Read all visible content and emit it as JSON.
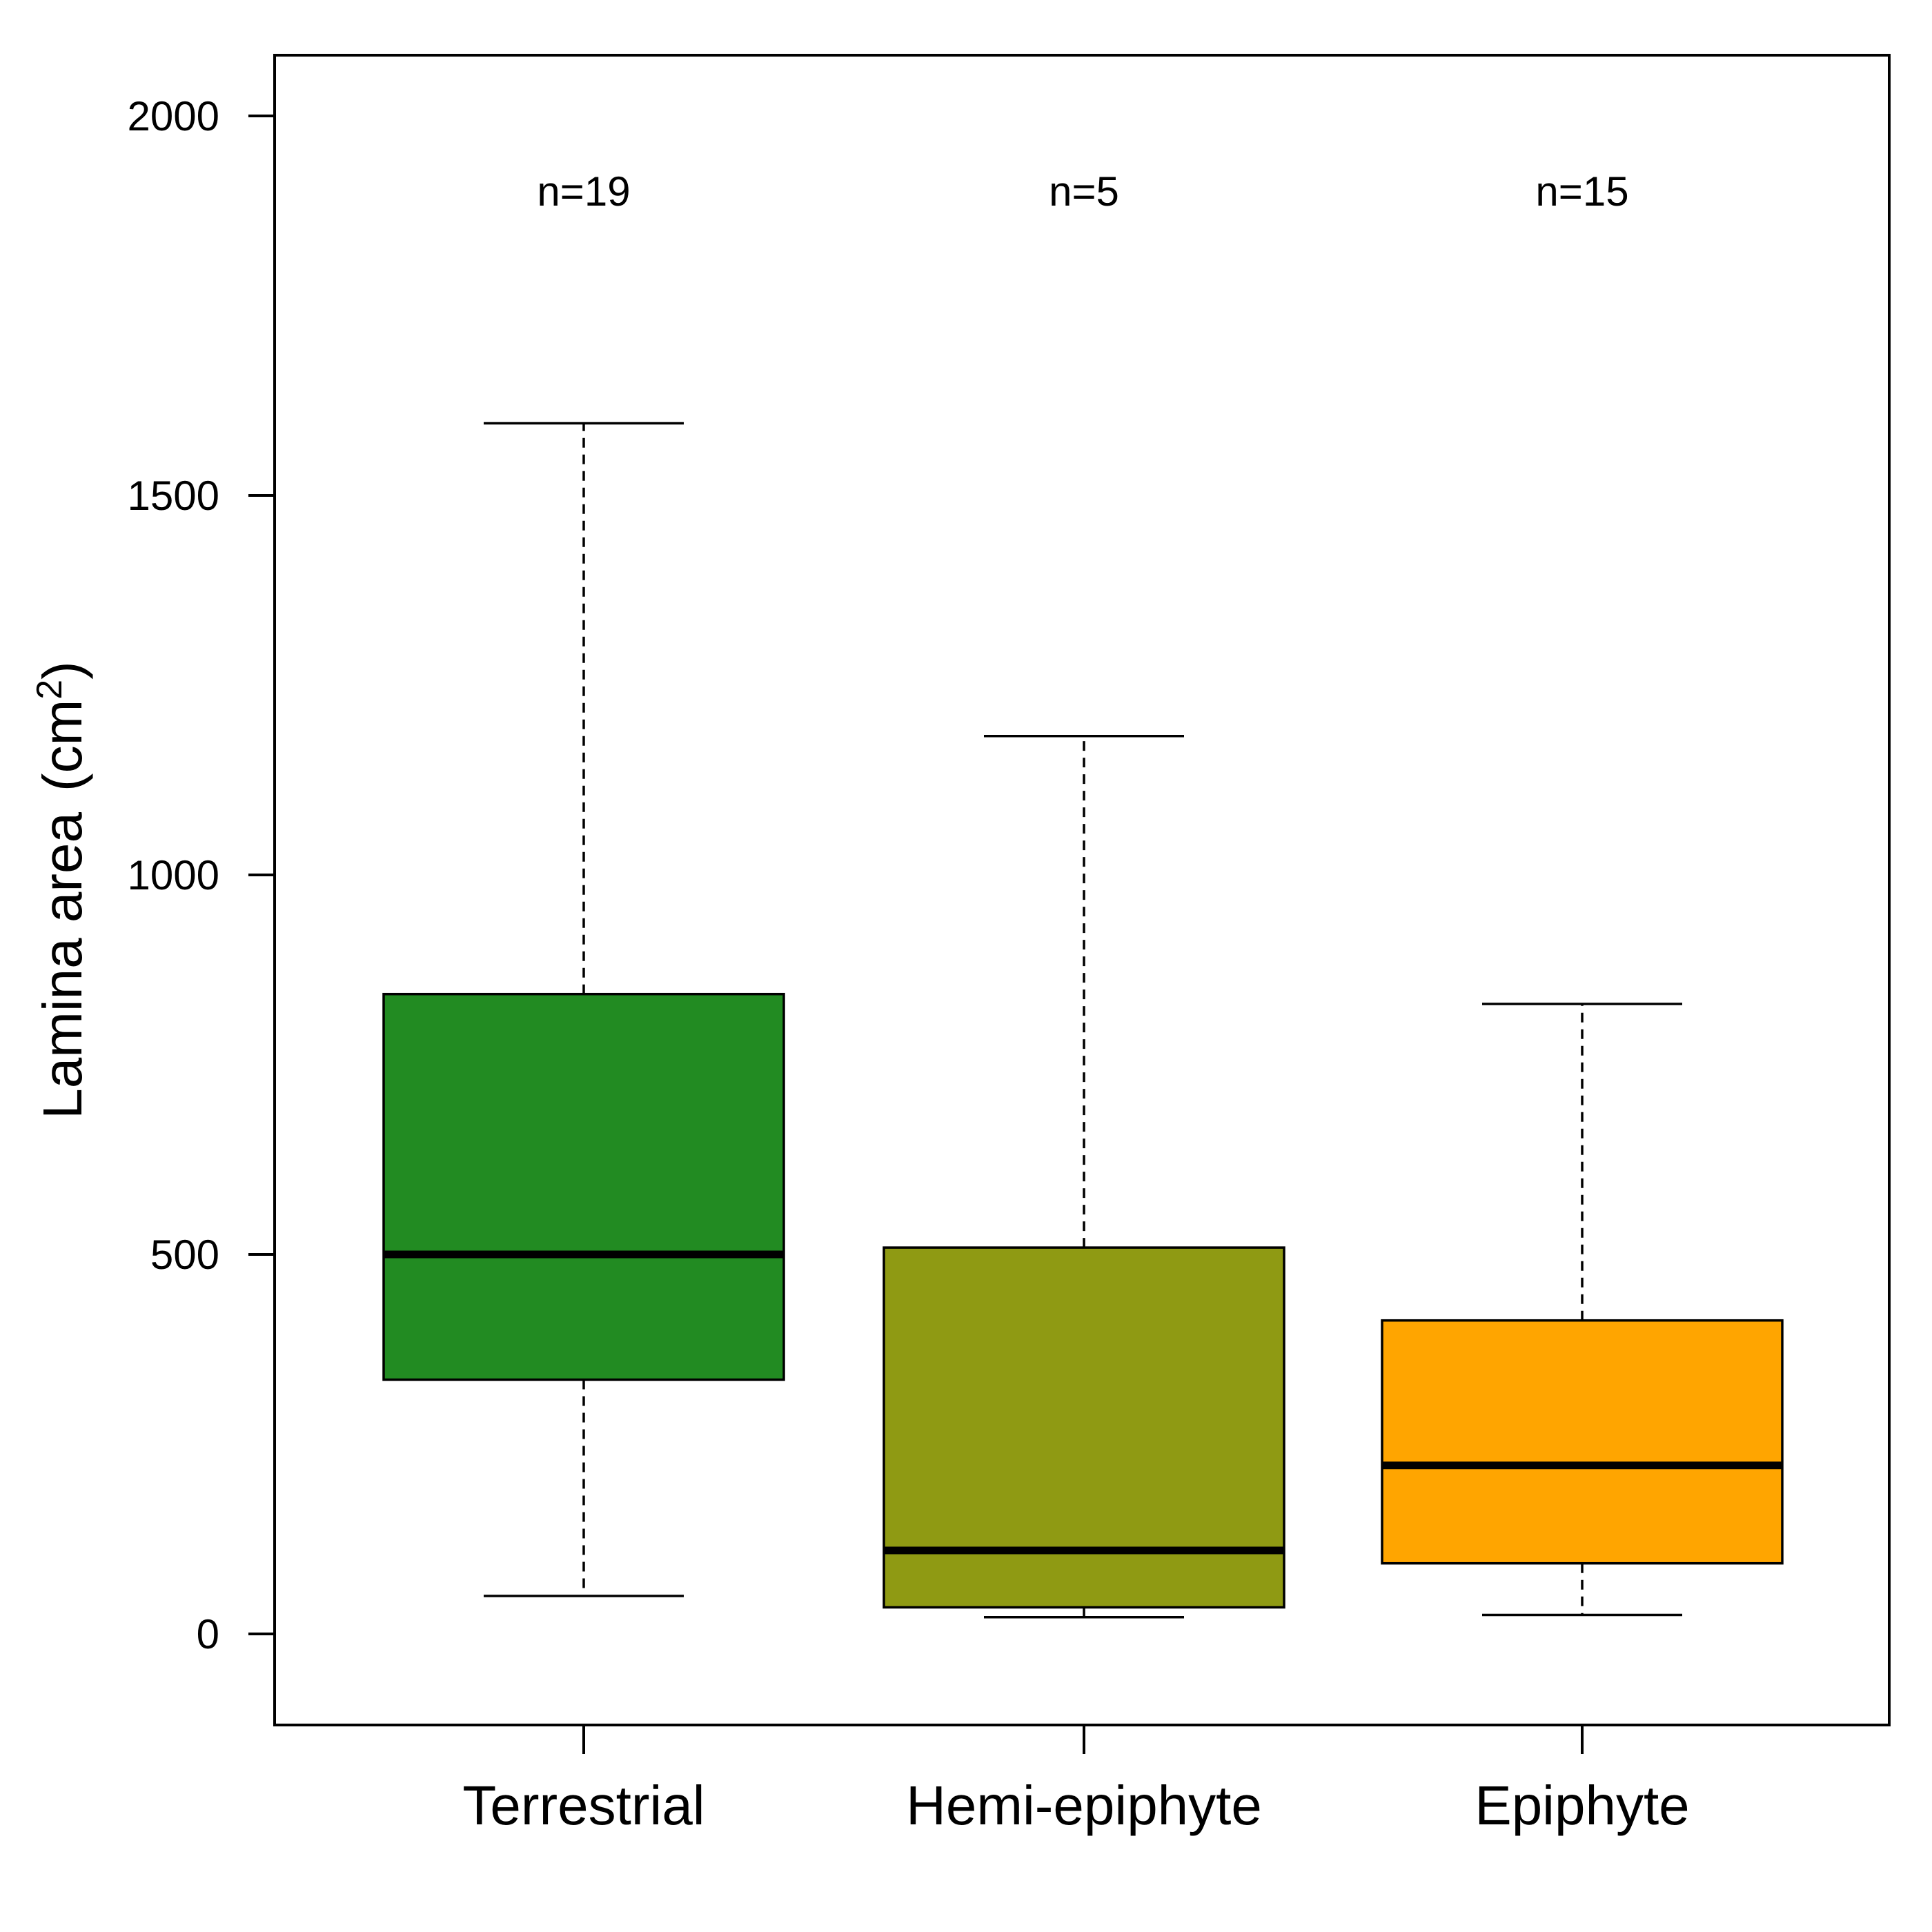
{
  "chart_data": {
    "type": "box",
    "ylabel": "Lamina area",
    "ylabel_unit": "(cm",
    "ylabel_unit_sup": "2",
    "ylabel_unit_close": ")",
    "ylim": [
      -120,
      2080
    ],
    "yticks": [
      0,
      500,
      1000,
      1500,
      2000
    ],
    "ytick_labels": [
      "0",
      "500",
      "1000",
      "1500",
      "2000"
    ],
    "categories": [
      "Terrestrial",
      "Hemi-epiphyte",
      "Epiphyte"
    ],
    "n_labels": [
      "n=19",
      "n=5",
      "n=15"
    ],
    "n_label_y": 1900,
    "groups": [
      {
        "name": "Terrestrial",
        "whisker_low": 50,
        "q1": 335,
        "median": 500,
        "q3": 843,
        "whisker_high": 1595,
        "color": "#228B22"
      },
      {
        "name": "Hemi-epiphyte",
        "whisker_low": 22,
        "q1": 35,
        "median": 110,
        "q3": 509,
        "whisker_high": 1183,
        "color": "#8F9A13"
      },
      {
        "name": "Epiphyte",
        "whisker_low": 25,
        "q1": 93,
        "median": 222,
        "q3": 413,
        "whisker_high": 830,
        "color": "#FFA500"
      }
    ]
  }
}
